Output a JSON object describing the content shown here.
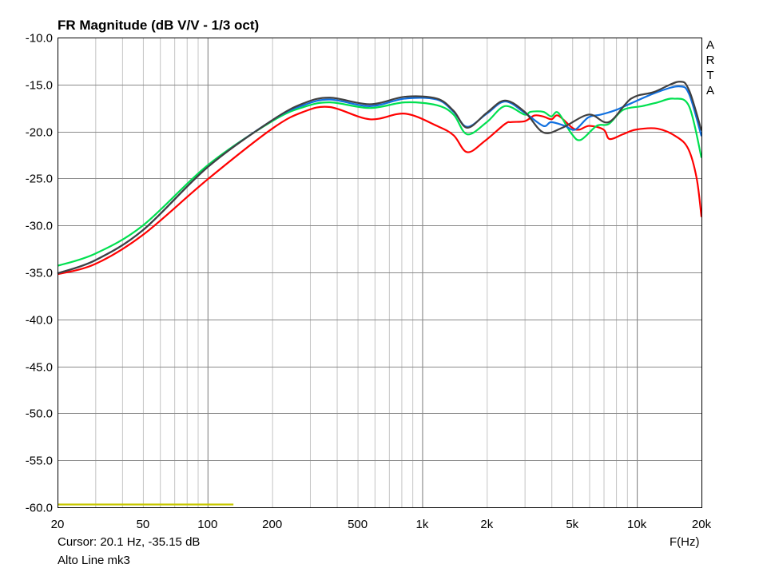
{
  "chart_data": {
    "type": "line",
    "title": "FR Magnitude (dB V/V - 1/3 oct)",
    "xlabel": "F(Hz)",
    "ylabel": "",
    "x_scale": "log",
    "xlim": [
      20,
      20000
    ],
    "ylim": [
      -60,
      -10
    ],
    "grid": true,
    "x_ticks": [
      {
        "value": 20,
        "label": "20"
      },
      {
        "value": 50,
        "label": "50"
      },
      {
        "value": 100,
        "label": "100"
      },
      {
        "value": 200,
        "label": "200"
      },
      {
        "value": 500,
        "label": "500"
      },
      {
        "value": 1000,
        "label": "1k"
      },
      {
        "value": 2000,
        "label": "2k"
      },
      {
        "value": 5000,
        "label": "5k"
      },
      {
        "value": 10000,
        "label": "10k"
      },
      {
        "value": 20000,
        "label": "20k"
      }
    ],
    "y_ticks": [
      "-10.0",
      "-15.0",
      "-20.0",
      "-25.0",
      "-30.0",
      "-35.0",
      "-40.0",
      "-45.0",
      "-50.0",
      "-55.0",
      "-60.0"
    ],
    "series": [
      {
        "color": "#ff0000",
        "points": [
          [
            20,
            -35.2
          ],
          [
            30,
            -34.1
          ],
          [
            50,
            -31.0
          ],
          [
            100,
            -25.1
          ],
          [
            200,
            -19.7
          ],
          [
            280,
            -17.9
          ],
          [
            372,
            -17.4
          ],
          [
            570,
            -18.7
          ],
          [
            830,
            -18.1
          ],
          [
            1170,
            -19.4
          ],
          [
            1400,
            -20.4
          ],
          [
            1620,
            -22.2
          ],
          [
            1960,
            -21.0
          ],
          [
            2430,
            -19.2
          ],
          [
            2600,
            -19.0
          ],
          [
            3010,
            -18.9
          ],
          [
            3330,
            -18.3
          ],
          [
            3660,
            -18.4
          ],
          [
            4000,
            -18.7
          ],
          [
            4300,
            -18.3
          ],
          [
            5000,
            -19.6
          ],
          [
            5400,
            -19.8
          ],
          [
            6000,
            -19.4
          ],
          [
            7000,
            -19.8
          ],
          [
            7460,
            -20.8
          ],
          [
            8600,
            -20.3
          ],
          [
            9900,
            -19.8
          ],
          [
            12500,
            -19.7
          ],
          [
            15400,
            -20.6
          ],
          [
            17400,
            -21.9
          ],
          [
            19000,
            -25.0
          ],
          [
            20000,
            -29.1
          ]
        ]
      },
      {
        "color": "#00e050",
        "points": [
          [
            20,
            -34.3
          ],
          [
            30,
            -33.0
          ],
          [
            50,
            -30.0
          ],
          [
            100,
            -23.6
          ],
          [
            200,
            -18.9
          ],
          [
            280,
            -17.4
          ],
          [
            372,
            -16.9
          ],
          [
            570,
            -17.5
          ],
          [
            830,
            -16.9
          ],
          [
            1170,
            -17.2
          ],
          [
            1400,
            -18.2
          ],
          [
            1620,
            -20.3
          ],
          [
            2000,
            -19.0
          ],
          [
            2430,
            -17.3
          ],
          [
            3000,
            -18.2
          ],
          [
            3200,
            -17.9
          ],
          [
            3660,
            -17.9
          ],
          [
            3990,
            -18.4
          ],
          [
            4300,
            -18.0
          ],
          [
            4950,
            -20.2
          ],
          [
            5470,
            -20.9
          ],
          [
            6500,
            -19.4
          ],
          [
            7400,
            -19.2
          ],
          [
            8630,
            -17.7
          ],
          [
            10600,
            -17.3
          ],
          [
            12500,
            -16.9
          ],
          [
            14800,
            -16.5
          ],
          [
            17500,
            -17.3
          ],
          [
            20000,
            -22.8
          ]
        ]
      },
      {
        "color": "#1070e0",
        "points": [
          [
            20,
            -35.1
          ],
          [
            30,
            -33.7
          ],
          [
            50,
            -30.5
          ],
          [
            100,
            -23.8
          ],
          [
            200,
            -18.8
          ],
          [
            280,
            -17.2
          ],
          [
            372,
            -16.6
          ],
          [
            570,
            -17.3
          ],
          [
            830,
            -16.5
          ],
          [
            1170,
            -16.6
          ],
          [
            1400,
            -17.9
          ],
          [
            1620,
            -19.5
          ],
          [
            2000,
            -18.1
          ],
          [
            2430,
            -16.8
          ],
          [
            3000,
            -18.0
          ],
          [
            3660,
            -19.4
          ],
          [
            3990,
            -19.0
          ],
          [
            4620,
            -19.4
          ],
          [
            5160,
            -19.8
          ],
          [
            5940,
            -18.5
          ],
          [
            6800,
            -18.2
          ],
          [
            8020,
            -17.7
          ],
          [
            9400,
            -17.0
          ],
          [
            12470,
            -15.8
          ],
          [
            15700,
            -15.2
          ],
          [
            17500,
            -16.0
          ],
          [
            20000,
            -20.5
          ]
        ]
      },
      {
        "color": "#404040",
        "points": [
          [
            20,
            -35.1
          ],
          [
            30,
            -33.7
          ],
          [
            50,
            -30.5
          ],
          [
            100,
            -23.8
          ],
          [
            200,
            -18.8
          ],
          [
            280,
            -17.0
          ],
          [
            372,
            -16.4
          ],
          [
            570,
            -17.1
          ],
          [
            832,
            -16.3
          ],
          [
            1172,
            -16.5
          ],
          [
            1400,
            -17.8
          ],
          [
            1622,
            -19.6
          ],
          [
            2000,
            -18.0
          ],
          [
            2427,
            -16.7
          ],
          [
            3000,
            -17.9
          ],
          [
            3665,
            -20.1
          ],
          [
            4500,
            -19.6
          ],
          [
            5970,
            -18.2
          ],
          [
            7400,
            -19.0
          ],
          [
            9400,
            -16.5
          ],
          [
            12000,
            -15.8
          ],
          [
            15700,
            -14.7
          ],
          [
            17500,
            -15.6
          ],
          [
            20000,
            -19.9
          ]
        ]
      },
      {
        "color": "#c8c800",
        "points": [
          [
            20,
            -59.7
          ],
          [
            132,
            -59.7
          ]
        ]
      }
    ]
  },
  "brand": [
    "A",
    "R",
    "T",
    "A"
  ],
  "cursor_readout": "Cursor: 20.1 Hz, -35.15 dB",
  "measurement_name": "Alto Line mk3"
}
